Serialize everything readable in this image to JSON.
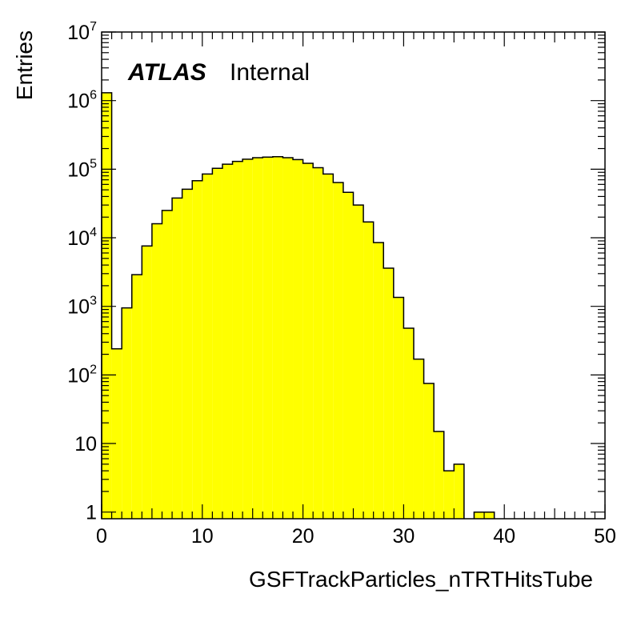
{
  "chart_data": {
    "type": "bar",
    "style": "histogram",
    "label": {
      "atlas": "ATLAS",
      "status": "Internal"
    },
    "xlabel": "GSFTrackParticles_nTRTHitsTube",
    "ylabel": "Entries",
    "xlim": [
      0,
      50
    ],
    "ylim": [
      0.8,
      10000000
    ],
    "y_scale": "log",
    "bin_width": 1,
    "fill_color": "#ffff00",
    "line_color": "#000000",
    "x": [
      0,
      1,
      2,
      3,
      4,
      5,
      6,
      7,
      8,
      9,
      10,
      11,
      12,
      13,
      14,
      15,
      16,
      17,
      18,
      19,
      20,
      21,
      22,
      23,
      24,
      25,
      26,
      27,
      28,
      29,
      30,
      31,
      32,
      33,
      34,
      35,
      36,
      37,
      38,
      39,
      40,
      41,
      42,
      43,
      44,
      45,
      46,
      47,
      48,
      49
    ],
    "values": [
      1300000,
      240,
      950,
      2900,
      7600,
      16000,
      25000,
      38000,
      51000,
      68000,
      85000,
      103000,
      118000,
      130000,
      140000,
      147000,
      150000,
      152000,
      147000,
      138000,
      122000,
      105000,
      85000,
      64000,
      46000,
      30000,
      17000,
      8500,
      3600,
      1350,
      480,
      170,
      75,
      15,
      4,
      5,
      0,
      1,
      1,
      0,
      0,
      0,
      0,
      0,
      0,
      0,
      0,
      0,
      0,
      0
    ],
    "x_ticks": [
      "0",
      "10",
      "20",
      "30",
      "40",
      "50"
    ],
    "y_ticks": [
      {
        "value": 1,
        "base": "1",
        "exp": ""
      },
      {
        "value": 10,
        "base": "10",
        "exp": ""
      },
      {
        "value": 100,
        "base": "10",
        "exp": "2"
      },
      {
        "value": 1000,
        "base": "10",
        "exp": "3"
      },
      {
        "value": 10000,
        "base": "10",
        "exp": "4"
      },
      {
        "value": 100000,
        "base": "10",
        "exp": "5"
      },
      {
        "value": 1000000,
        "base": "10",
        "exp": "6"
      },
      {
        "value": 10000000,
        "base": "10",
        "exp": "7"
      }
    ]
  }
}
